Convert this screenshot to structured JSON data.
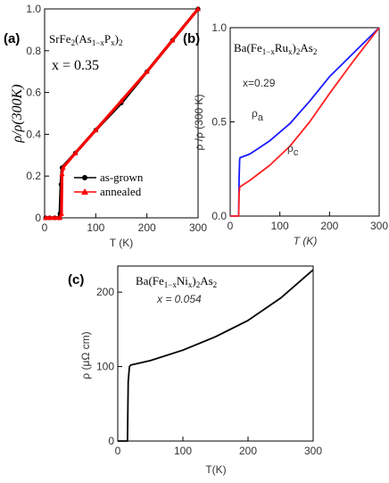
{
  "chart_data": [
    {
      "type": "line",
      "panel_label": "(a)",
      "compound": {
        "pre": "SrFe",
        "sub1": "2",
        "mid": "(As",
        "sub2": "1−x",
        "mid2": "P",
        "sub3": "x",
        "post": ")",
        "sub4": "2"
      },
      "annotation": "x = 0.35",
      "xlabel": "T (K)",
      "ylabel": "ρ/ρ(300K)",
      "xlim": [
        0,
        300
      ],
      "ylim": [
        0,
        1.0
      ],
      "xticks": [
        "0",
        "100",
        "200",
        "300"
      ],
      "yticks": [
        "0",
        "0.2",
        "0.4",
        "0.6",
        "0.8",
        "1.0"
      ],
      "legend": [
        "as-grown",
        "annealed"
      ],
      "series": [
        {
          "name": "as-grown",
          "color": "#000000",
          "x": [
            2,
            10,
            20,
            28,
            30,
            32,
            34,
            60,
            100,
            150,
            200,
            250,
            300
          ],
          "y": [
            0,
            0,
            0,
            0,
            0.02,
            0.16,
            0.24,
            0.31,
            0.42,
            0.55,
            0.7,
            0.85,
            1.0
          ]
        },
        {
          "name": "annealed",
          "color": "#ff0000",
          "x": [
            2,
            10,
            20,
            30,
            33,
            34,
            36,
            60,
            100,
            150,
            200,
            250,
            300
          ],
          "y": [
            0,
            0,
            0,
            0,
            0.02,
            0.21,
            0.24,
            0.31,
            0.42,
            0.56,
            0.7,
            0.85,
            1.0
          ]
        }
      ]
    },
    {
      "type": "line",
      "panel_label": "(b)",
      "compound": {
        "pre": "Ba(Fe",
        "sub1": "1−x",
        "mid": "Ru",
        "sub2": "x",
        "post": ")",
        "sub3": "2",
        "tail": "As",
        "sub4": "2"
      },
      "annotation": "x=0.29",
      "xlabel": "T (K)",
      "ylabel": "ρ /ρ (300 K)",
      "xlim": [
        0,
        300
      ],
      "ylim": [
        0,
        1.0
      ],
      "xticks": [
        "0",
        "100",
        "200",
        "300"
      ],
      "yticks": [
        "0.0",
        "0.5",
        "1.0"
      ],
      "series": [
        {
          "name": "ρa",
          "label_main": "ρ",
          "label_sub": "a",
          "color": "#1a1aff",
          "x": [
            0,
            10,
            17,
            18,
            19,
            20,
            40,
            80,
            120,
            160,
            200,
            250,
            300
          ],
          "y": [
            0,
            0,
            0,
            0.2,
            0.3,
            0.31,
            0.33,
            0.4,
            0.49,
            0.61,
            0.74,
            0.87,
            1.0
          ]
        },
        {
          "name": "ρc",
          "label_main": "ρ",
          "label_sub": "c",
          "color": "#ff2020",
          "x": [
            0,
            10,
            17,
            18,
            19,
            20,
            40,
            80,
            120,
            160,
            200,
            250,
            300
          ],
          "y": [
            0,
            0,
            0,
            0.12,
            0.15,
            0.155,
            0.19,
            0.27,
            0.37,
            0.5,
            0.65,
            0.83,
            1.0
          ]
        }
      ]
    },
    {
      "type": "line",
      "panel_label": "(c)",
      "compound": {
        "pre": "Ba(Fe",
        "sub1": "1−x",
        "mid": "Ni",
        "sub2": "x",
        "post": ")",
        "sub3": "2",
        "tail": "As",
        "sub4": "2"
      },
      "annotation": "x = 0.054",
      "xlabel": "T(K)",
      "ylabel": "ρ (μΩ cm)",
      "xlim": [
        0,
        300
      ],
      "ylim": [
        0,
        235
      ],
      "xticks": [
        "0",
        "100",
        "200",
        "300"
      ],
      "yticks": [
        "0",
        "100",
        "200"
      ],
      "series": [
        {
          "name": "",
          "color": "#000000",
          "x": [
            0,
            10,
            15,
            16,
            18,
            20,
            50,
            100,
            150,
            200,
            250,
            300
          ],
          "y": [
            0,
            0,
            0,
            80,
            100,
            102,
            108,
            122,
            140,
            162,
            192,
            230
          ]
        }
      ]
    }
  ]
}
